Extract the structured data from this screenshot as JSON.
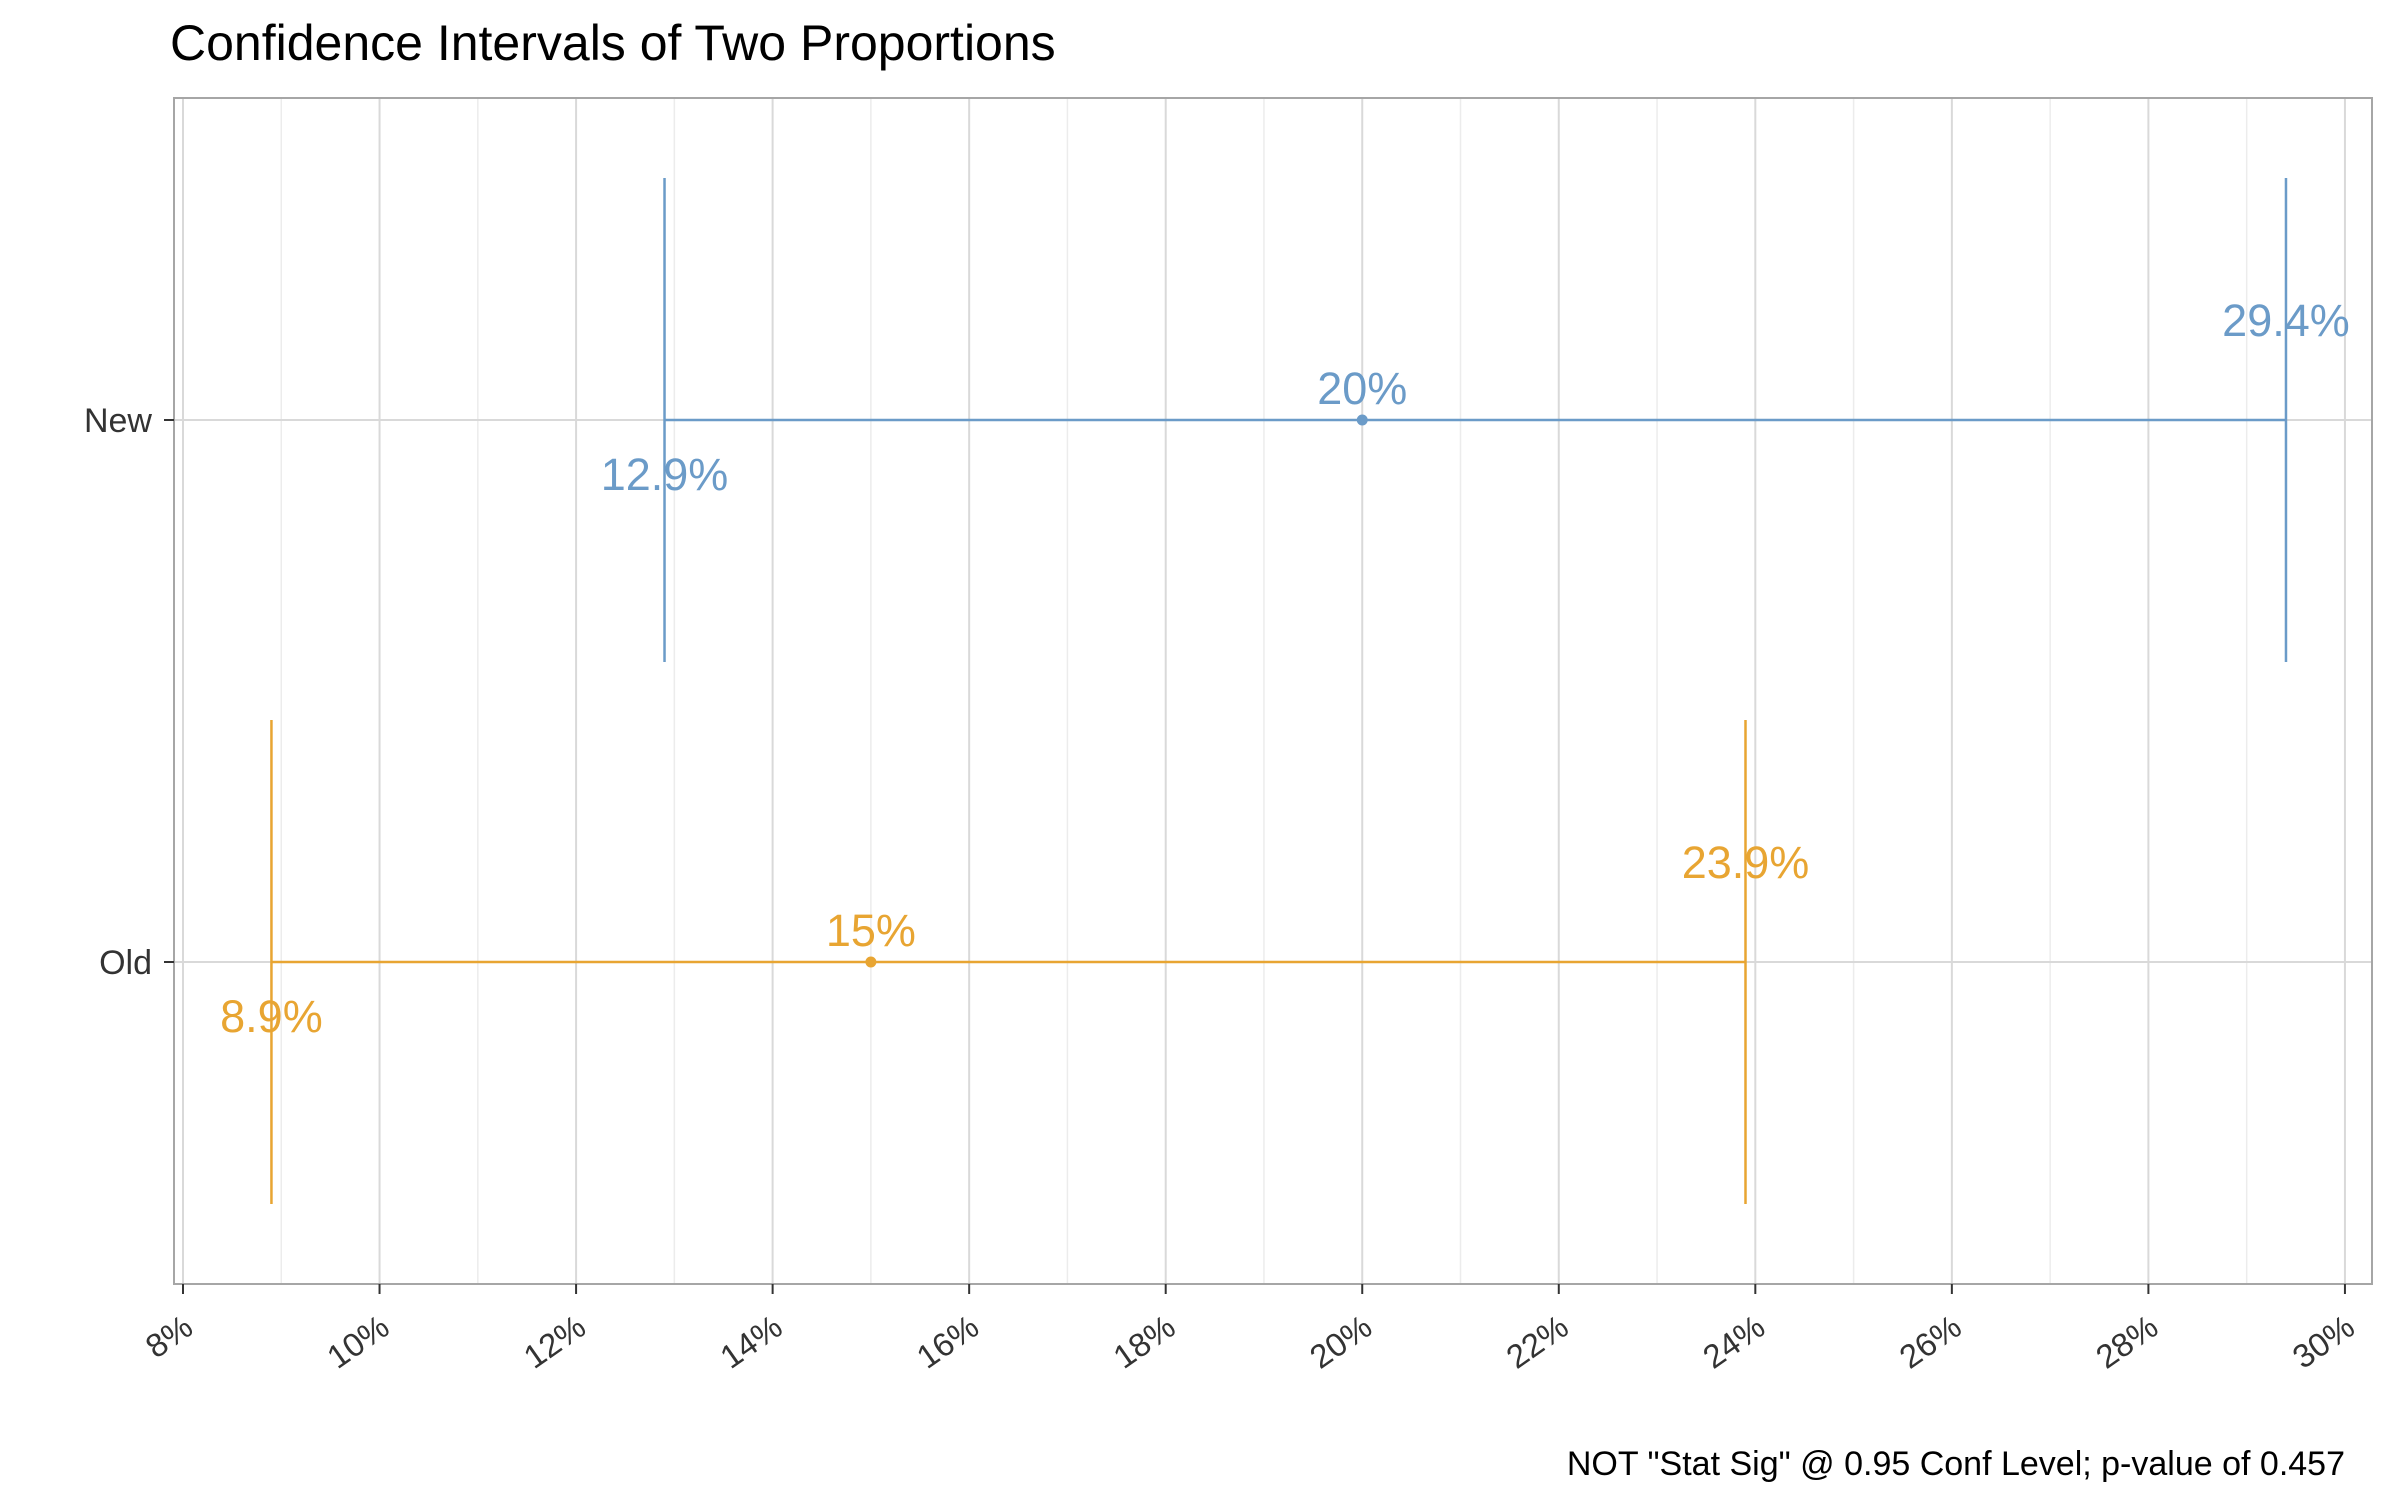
{
  "chart_data": {
    "type": "errorbar",
    "title": "Confidence Intervals of Two Proportions",
    "caption": "NOT \"Stat Sig\" @ 0.95 Conf Level; p-value of 0.457",
    "xlabel": "",
    "ylabel": "",
    "xlim": [
      8,
      30
    ],
    "x_ticks": [
      "8%",
      "10%",
      "12%",
      "14%",
      "16%",
      "18%",
      "20%",
      "22%",
      "24%",
      "26%",
      "28%",
      "30%"
    ],
    "grid": true,
    "legend": "none",
    "categories": [
      "New",
      "Old"
    ],
    "series": [
      {
        "category": "New",
        "estimate": 20,
        "lower": 12.9,
        "upper": 29.4,
        "estimate_label": "20%",
        "lower_label": "12.9%",
        "upper_label": "29.4%",
        "color": "#6b9bc8"
      },
      {
        "category": "Old",
        "estimate": 15,
        "lower": 8.9,
        "upper": 23.9,
        "estimate_label": "15%",
        "lower_label": "8.9%",
        "upper_label": "23.9%",
        "color": "#e8a532"
      }
    ],
    "colors": {
      "panel_border": "#a6a6a6",
      "grid_major": "#d9d9d9",
      "grid_minor": "#ececec"
    }
  }
}
